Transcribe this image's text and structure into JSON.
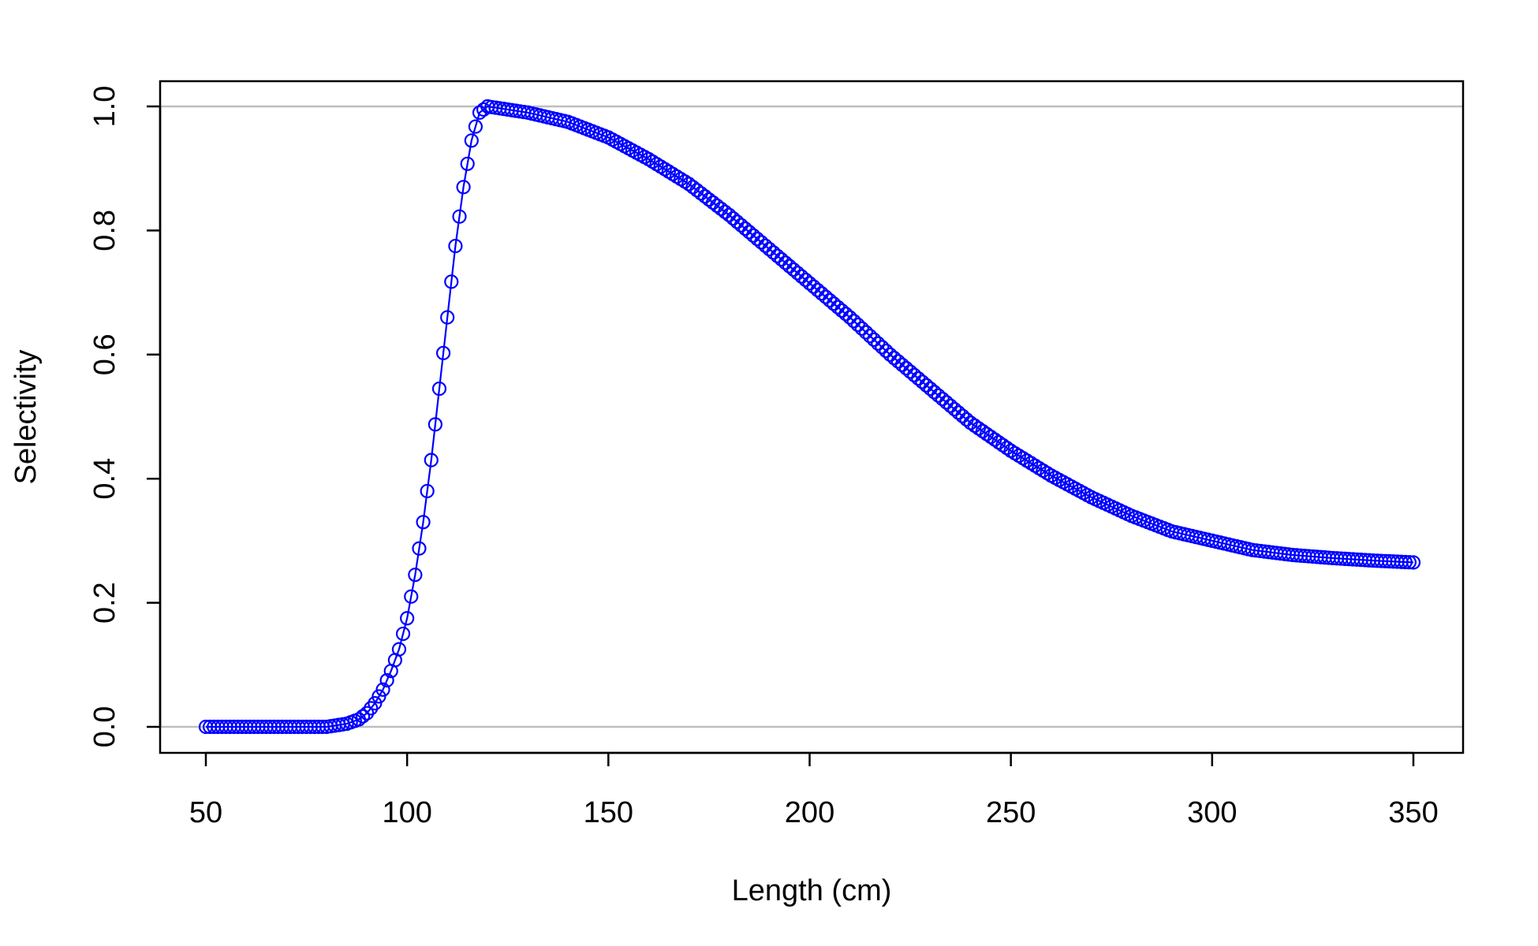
{
  "chart_data": {
    "type": "line",
    "xlabel": "Length (cm)",
    "ylabel": "Selectivity",
    "xlim": [
      50,
      350
    ],
    "ylim": [
      0,
      1
    ],
    "x_ticks": [
      50,
      100,
      150,
      200,
      250,
      300,
      350
    ],
    "y_ticks": [
      0.0,
      0.2,
      0.4,
      0.6,
      0.8,
      1.0
    ],
    "y_tick_labels": [
      "0.0",
      "0.2",
      "0.4",
      "0.6",
      "0.8",
      "1.0"
    ],
    "reference_lines": [
      0,
      1
    ],
    "grid": false,
    "marker": "open-circle",
    "series": [
      {
        "color": "#0000FF",
        "x": [
          50,
          60,
          70,
          80,
          85,
          88,
          90,
          92,
          94,
          96,
          98,
          100,
          102,
          104,
          106,
          108,
          110,
          112,
          114,
          116,
          118,
          120,
          130,
          140,
          150,
          160,
          170,
          180,
          190,
          200,
          210,
          220,
          230,
          240,
          250,
          260,
          270,
          280,
          290,
          300,
          310,
          320,
          330,
          340,
          350
        ],
        "y": [
          0.0,
          0.0,
          0.0,
          0.0,
          0.005,
          0.012,
          0.022,
          0.038,
          0.06,
          0.09,
          0.125,
          0.175,
          0.245,
          0.33,
          0.43,
          0.545,
          0.66,
          0.775,
          0.87,
          0.945,
          0.99,
          1.0,
          0.99,
          0.975,
          0.95,
          0.915,
          0.875,
          0.825,
          0.77,
          0.715,
          0.66,
          0.6,
          0.545,
          0.49,
          0.445,
          0.405,
          0.37,
          0.34,
          0.315,
          0.3,
          0.285,
          0.277,
          0.272,
          0.268,
          0.265
        ]
      }
    ]
  }
}
